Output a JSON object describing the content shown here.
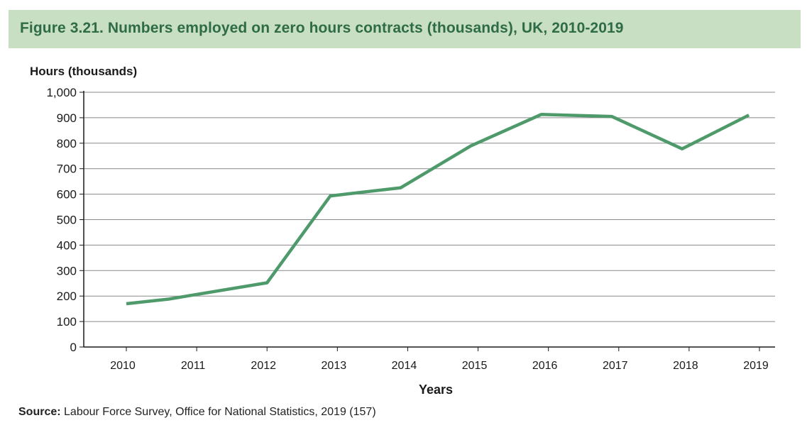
{
  "title": "Figure 3.21. Numbers employed on zero hours contracts (thousands), UK, 2010-2019",
  "source_label": "Source:",
  "source_text": " Labour Force Survey, Office for National Statistics, 2019 (157)",
  "colors": {
    "line": "#4e9a6b",
    "header_bg": "#c9dfc4",
    "title_text": "#2e6b47"
  },
  "chart_data": {
    "type": "line",
    "ylabel": "Hours (thousands)",
    "xlabel": "Years",
    "ylim": [
      0,
      1000
    ],
    "grid": true,
    "y_ticks": [
      "0",
      "100",
      "200",
      "300",
      "400",
      "500",
      "600",
      "700",
      "800",
      "900",
      "1,000"
    ],
    "y_tick_values": [
      0,
      100,
      200,
      300,
      400,
      500,
      600,
      700,
      800,
      900,
      1000
    ],
    "categories": [
      "2010",
      "2011",
      "2012",
      "2013",
      "2014",
      "2015",
      "2016",
      "2017",
      "2018",
      "2019"
    ],
    "series": [
      {
        "x": [
          2010,
          2010.6,
          2012,
          2012.9,
          2013.9,
          2014.9,
          2015.9,
          2016.9,
          2017.9,
          2018.85
        ],
        "values": [
          170,
          188,
          252,
          593,
          625,
          790,
          913,
          905,
          778,
          910
        ]
      }
    ]
  }
}
